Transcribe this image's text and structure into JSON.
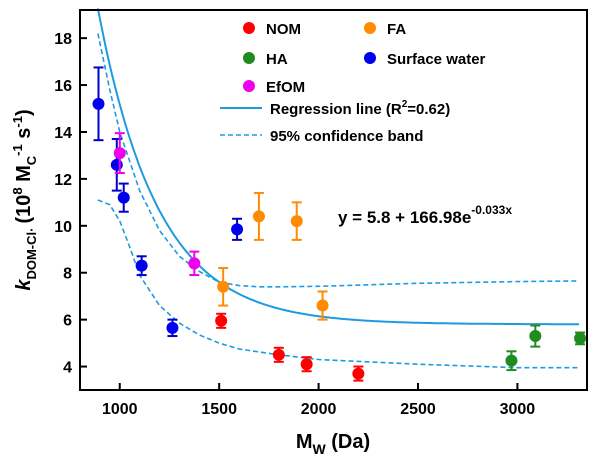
{
  "chart_data": {
    "type": "scatter",
    "xlabel": {
      "main": "M",
      "sub": "W",
      "rest": " (Da)"
    },
    "ylabel": {
      "k": "k",
      "ksub": "DOM-Cl·",
      "rest": "(10",
      "exp8": "8",
      "mid": " M",
      "subC": "C",
      "exp_1": "-1",
      "sec": " s",
      "exp_1b": "-1",
      "close": ")"
    },
    "xlim": [
      800,
      3350
    ],
    "ylim": [
      3,
      19.2
    ],
    "x_ticks": [
      1000,
      1500,
      2000,
      2500,
      3000
    ],
    "x_tick_labels": [
      "1000",
      "1500",
      "2000",
      "2500",
      "3000"
    ],
    "y_ticks": [
      4,
      6,
      8,
      10,
      12,
      14,
      16,
      18
    ],
    "y_tick_labels": [
      "4",
      "6",
      "8",
      "10",
      "12",
      "14",
      "16",
      "18"
    ],
    "legend_position": "top-right",
    "series": [
      {
        "name": "NOM",
        "color": "#ff0000",
        "errcolor": "#ff0000",
        "points": [
          {
            "x": 1510,
            "y": 5.95,
            "err": 0.3
          },
          {
            "x": 1800,
            "y": 4.5,
            "err": 0.3
          },
          {
            "x": 1940,
            "y": 4.1,
            "err": 0.3
          },
          {
            "x": 2200,
            "y": 3.7,
            "err": 0.3
          }
        ]
      },
      {
        "name": "FA",
        "color": "#ff8c00",
        "errcolor": "#ff8c00",
        "points": [
          {
            "x": 1520,
            "y": 7.4,
            "err": 0.8
          },
          {
            "x": 1700,
            "y": 10.4,
            "err": 1.0
          },
          {
            "x": 1890,
            "y": 10.2,
            "err": 0.8
          },
          {
            "x": 2020,
            "y": 6.6,
            "err": 0.6
          }
        ]
      },
      {
        "name": "HA",
        "color": "#1f8c1f",
        "errcolor": "#1f8c1f",
        "points": [
          {
            "x": 2970,
            "y": 4.25,
            "err": 0.4
          },
          {
            "x": 3090,
            "y": 5.3,
            "err": 0.45
          },
          {
            "x": 3315,
            "y": 5.2,
            "err": 0.25
          }
        ]
      },
      {
        "name": "Surface water",
        "color": "#0000ee",
        "errcolor": "#0000cc",
        "points": [
          {
            "x": 893,
            "y": 15.2,
            "err": 1.55
          },
          {
            "x": 985,
            "y": 12.6,
            "err": 1.1
          },
          {
            "x": 1020,
            "y": 11.2,
            "err": 0.6
          },
          {
            "x": 1110,
            "y": 8.3,
            "err": 0.4
          },
          {
            "x": 1265,
            "y": 5.65,
            "err": 0.35
          },
          {
            "x": 1590,
            "y": 9.85,
            "err": 0.45
          }
        ]
      },
      {
        "name": "EfOM",
        "color": "#ee00ee",
        "errcolor": "#ee00ee",
        "points": [
          {
            "x": 1000,
            "y": 13.1,
            "err": 0.85
          },
          {
            "x": 1375,
            "y": 8.4,
            "err": 0.5
          }
        ]
      }
    ],
    "regression": {
      "name": "Regression line (R",
      "r2_sup": "2",
      "r2_rest": "=0.62)",
      "color": "#1e9be0",
      "a": 5.8,
      "b": 166.98,
      "k": 0.033,
      "x_range": [
        890,
        3310
      ]
    },
    "confidence_band": {
      "name": "95% confidence band",
      "color": "#1e9be0",
      "upper": [
        [
          890,
          18.2
        ],
        [
          950,
          15.8
        ],
        [
          1000,
          14.0
        ],
        [
          1100,
          11.5
        ],
        [
          1200,
          9.8
        ],
        [
          1300,
          8.7
        ],
        [
          1400,
          8.05
        ],
        [
          1500,
          7.6
        ],
        [
          1600,
          7.45
        ],
        [
          1700,
          7.4
        ],
        [
          1800,
          7.4
        ],
        [
          2000,
          7.42
        ],
        [
          2500,
          7.55
        ],
        [
          3000,
          7.62
        ],
        [
          3310,
          7.65
        ]
      ],
      "lower": [
        [
          890,
          11.1
        ],
        [
          950,
          10.9
        ],
        [
          1000,
          10.2
        ],
        [
          1050,
          9.1
        ],
        [
          1100,
          7.9
        ],
        [
          1200,
          6.6
        ],
        [
          1300,
          5.85
        ],
        [
          1400,
          5.35
        ],
        [
          1500,
          5.0
        ],
        [
          1600,
          4.75
        ],
        [
          1800,
          4.5
        ],
        [
          2000,
          4.3
        ],
        [
          2500,
          4.1
        ],
        [
          3000,
          3.95
        ],
        [
          3310,
          3.95
        ]
      ]
    },
    "equation": {
      "main": "y = 5.8 + 166.98e",
      "sup": "-0.033x"
    }
  }
}
